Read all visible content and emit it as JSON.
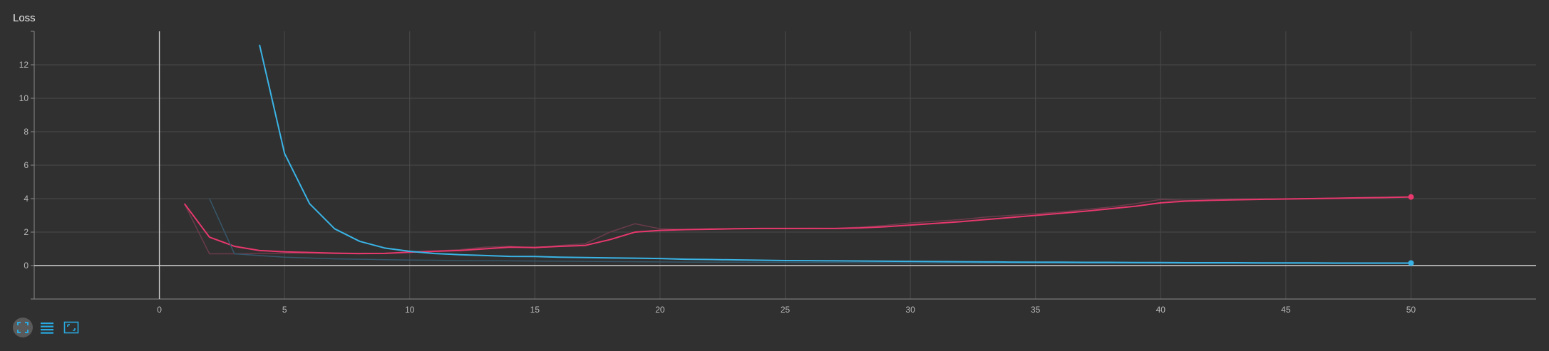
{
  "title": "Loss",
  "toolbar": {
    "icons": [
      "fit-domain-icon",
      "toggle-log-scale-icon",
      "expand-chart-icon"
    ]
  },
  "colors": {
    "background": "#303030",
    "grid": "#4a4a4a",
    "axis": "#cfcfcf",
    "accent": "#29a9e0"
  },
  "chart_data": {
    "type": "line",
    "title": "Loss",
    "xlabel": "",
    "ylabel": "",
    "xlim": [
      -5,
      55
    ],
    "ylim": [
      -2,
      14
    ],
    "xticks": [
      0,
      5,
      10,
      15,
      20,
      25,
      30,
      35,
      40,
      45,
      50
    ],
    "yticks": [
      0,
      2,
      4,
      6,
      8,
      10,
      12
    ],
    "grid": true,
    "series": [
      {
        "color": "#e8386e",
        "raw_color": "#6b3b4a",
        "x": [
          1,
          2,
          3,
          4,
          5,
          6,
          7,
          8,
          9,
          10,
          11,
          12,
          13,
          14,
          15,
          16,
          17,
          18,
          19,
          20,
          21,
          22,
          23,
          24,
          25,
          26,
          27,
          28,
          29,
          30,
          31,
          32,
          33,
          34,
          35,
          36,
          37,
          38,
          39,
          40,
          41,
          42,
          43,
          44,
          45,
          46,
          47,
          48,
          49,
          50
        ],
        "values": [
          3.7,
          1.7,
          1.15,
          0.9,
          0.82,
          0.78,
          0.74,
          0.72,
          0.73,
          0.8,
          0.85,
          0.9,
          1.0,
          1.1,
          1.08,
          1.15,
          1.2,
          1.55,
          2.0,
          2.1,
          2.15,
          2.17,
          2.2,
          2.22,
          2.22,
          2.22,
          2.22,
          2.25,
          2.32,
          2.42,
          2.52,
          2.62,
          2.75,
          2.87,
          3.0,
          3.12,
          3.25,
          3.4,
          3.55,
          3.75,
          3.85,
          3.9,
          3.93,
          3.96,
          3.98,
          4.0,
          4.02,
          4.05,
          4.07,
          4.1
        ],
        "raw_x": [
          1,
          2,
          3,
          4,
          5,
          6,
          7,
          8,
          9,
          10,
          11,
          12,
          13,
          14,
          15,
          16,
          17,
          18,
          19,
          20,
          21,
          22,
          23,
          24,
          25,
          26,
          27,
          28,
          29,
          30,
          31,
          32,
          33,
          34,
          35,
          36,
          37,
          38,
          39,
          40,
          41,
          42,
          43,
          44,
          45,
          46,
          47,
          48,
          49,
          50
        ],
        "raw_values": [
          3.7,
          0.7,
          0.7,
          0.72,
          0.74,
          0.75,
          0.72,
          0.7,
          0.72,
          0.82,
          0.88,
          0.95,
          1.1,
          1.15,
          1.05,
          1.2,
          1.3,
          2.0,
          2.5,
          2.2,
          2.15,
          2.2,
          2.2,
          2.22,
          2.22,
          2.23,
          2.22,
          2.3,
          2.4,
          2.55,
          2.65,
          2.75,
          2.9,
          3.0,
          3.1,
          3.2,
          3.35,
          3.5,
          3.7,
          3.95,
          3.9,
          3.92,
          3.95,
          3.98,
          3.99,
          4.01,
          4.03,
          4.06,
          4.08,
          4.1
        ]
      },
      {
        "color": "#3ab4e6",
        "raw_color": "#36586b",
        "x": [
          4,
          5,
          6,
          7,
          8,
          9,
          10,
          11,
          12,
          13,
          14,
          15,
          16,
          17,
          18,
          19,
          20,
          21,
          22,
          23,
          24,
          25,
          26,
          27,
          28,
          29,
          30,
          31,
          32,
          33,
          34,
          35,
          36,
          37,
          38,
          39,
          40,
          41,
          42,
          43,
          44,
          45,
          46,
          47,
          48,
          49,
          50
        ],
        "values": [
          13.2,
          6.7,
          3.7,
          2.2,
          1.45,
          1.05,
          0.85,
          0.72,
          0.65,
          0.6,
          0.55,
          0.54,
          0.5,
          0.48,
          0.46,
          0.44,
          0.42,
          0.38,
          0.36,
          0.34,
          0.32,
          0.3,
          0.29,
          0.28,
          0.27,
          0.26,
          0.25,
          0.24,
          0.23,
          0.22,
          0.21,
          0.2,
          0.2,
          0.19,
          0.19,
          0.18,
          0.18,
          0.17,
          0.17,
          0.17,
          0.16,
          0.16,
          0.16,
          0.15,
          0.15,
          0.15,
          0.15
        ],
        "raw_x": [
          2,
          3,
          4,
          5,
          6,
          7,
          8,
          9,
          10,
          11,
          12,
          13,
          14,
          15,
          16,
          17,
          18,
          19,
          20,
          21,
          22,
          23,
          24,
          25,
          26,
          27,
          28,
          29,
          30,
          31,
          32,
          33,
          34,
          35,
          36,
          37,
          38,
          39,
          40,
          41,
          42,
          43,
          44,
          45,
          46,
          47,
          48,
          49,
          50
        ],
        "raw_values": [
          4.0,
          0.7,
          0.6,
          0.5,
          0.45,
          0.4,
          0.38,
          0.35,
          0.33,
          0.32,
          0.3,
          0.29,
          0.28,
          0.27,
          0.26,
          0.25,
          0.24,
          0.23,
          0.22,
          0.21,
          0.2,
          0.2,
          0.19,
          0.19,
          0.18,
          0.18,
          0.17,
          0.17,
          0.16,
          0.16,
          0.16,
          0.15,
          0.15,
          0.15,
          0.14,
          0.14,
          0.14,
          0.14,
          0.13,
          0.13,
          0.13,
          0.13,
          0.12,
          0.12,
          0.12,
          0.12,
          0.12,
          0.12,
          0.12
        ]
      }
    ]
  }
}
